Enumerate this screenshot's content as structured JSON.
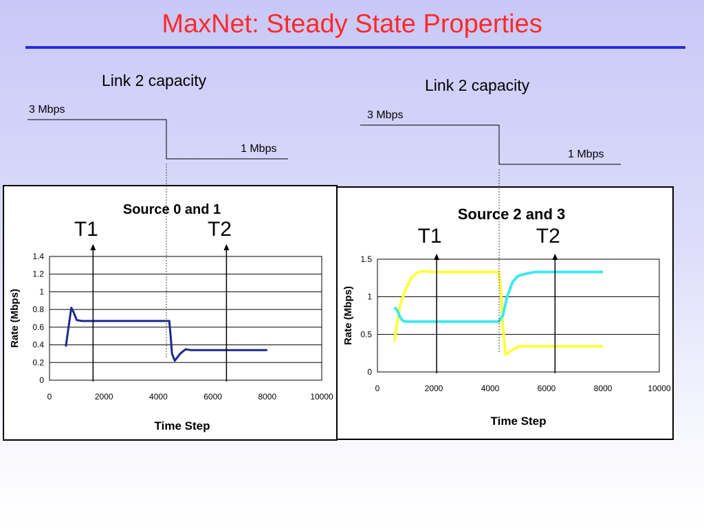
{
  "slide": {
    "title": "MaxNet: Steady State Properties",
    "title_color": "#ff2a2a",
    "rule_color": "#2b2bd9"
  },
  "capacity_diagrams": [
    {
      "title": "Link 2 capacity",
      "high_label": "3 Mbps",
      "low_label": "1 Mbps"
    },
    {
      "title": "Link 2 capacity",
      "high_label": "3 Mbps",
      "low_label": "1 Mbps"
    }
  ],
  "markers": {
    "t1": "T1",
    "t2": "T2"
  },
  "chart_data": [
    {
      "type": "line",
      "title": "Source 0 and 1",
      "xlabel": "Time Step",
      "ylabel": "Rate (Mbps)",
      "xlim": [
        0,
        10000
      ],
      "ylim": [
        0,
        1.4
      ],
      "xticks": [
        0,
        2000,
        4000,
        6000,
        8000,
        10000
      ],
      "xtick_labels": [
        "0",
        "2000",
        "4000",
        "6000",
        "8000",
        "10000"
      ],
      "yticks": [
        0,
        0.2,
        0.4,
        0.6,
        0.8,
        1,
        1.2,
        1.4
      ],
      "ytick_labels": [
        "0",
        "0.2",
        "0.4",
        "0.6",
        "0.8",
        "1",
        "1.2",
        "1.4"
      ],
      "grid": true,
      "events": [
        {
          "label": "T1",
          "x": 1600
        },
        {
          "label": "T2",
          "x": 6500
        }
      ],
      "series": [
        {
          "color": "#1b2a8a",
          "x": [
            600,
            700,
            800,
            900,
            1000,
            1200,
            1500,
            2000,
            3000,
            4000,
            4400,
            4450,
            4500,
            4600,
            4800,
            5000,
            5200,
            6000,
            7000,
            8000
          ],
          "y": [
            0.38,
            0.6,
            0.82,
            0.76,
            0.68,
            0.67,
            0.67,
            0.67,
            0.67,
            0.67,
            0.67,
            0.5,
            0.3,
            0.22,
            0.3,
            0.35,
            0.34,
            0.34,
            0.34,
            0.34
          ]
        }
      ]
    },
    {
      "type": "line",
      "title": "Source 2 and 3",
      "xlabel": "Time Step",
      "ylabel": "Rate (Mbps)",
      "xlim": [
        0,
        10000
      ],
      "ylim": [
        0,
        1.5
      ],
      "xticks": [
        0,
        2000,
        4000,
        6000,
        8000,
        10000
      ],
      "xtick_labels": [
        "0",
        "2000",
        "4000",
        "6000",
        "8000",
        "10000"
      ],
      "yticks": [
        0,
        0.5,
        1,
        1.5
      ],
      "ytick_labels": [
        "0",
        "0.5",
        "1",
        "1.5"
      ],
      "grid": true,
      "events": [
        {
          "label": "T1",
          "x": 2100
        },
        {
          "label": "T2",
          "x": 6300
        }
      ],
      "series": [
        {
          "color": "#ffff40",
          "x": [
            600,
            700,
            800,
            1000,
            1200,
            1400,
            1600,
            2000,
            3000,
            4000,
            4300,
            4380,
            4450,
            4550,
            4700,
            5000,
            5500,
            6000,
            7000,
            8000
          ],
          "y": [
            0.4,
            0.65,
            0.88,
            1.1,
            1.25,
            1.32,
            1.34,
            1.33,
            1.33,
            1.33,
            1.33,
            1.1,
            0.6,
            0.23,
            0.27,
            0.34,
            0.34,
            0.34,
            0.34,
            0.34
          ]
        },
        {
          "color": "#40e8f0",
          "x": [
            600,
            700,
            800,
            900,
            1000,
            1500,
            2000,
            3000,
            4000,
            4300,
            4450,
            4600,
            4800,
            5000,
            5300,
            5600,
            6000,
            7000,
            8000
          ],
          "y": [
            0.86,
            0.82,
            0.73,
            0.68,
            0.67,
            0.67,
            0.67,
            0.67,
            0.67,
            0.67,
            0.75,
            1.0,
            1.2,
            1.28,
            1.31,
            1.33,
            1.33,
            1.33,
            1.33
          ]
        }
      ]
    }
  ]
}
